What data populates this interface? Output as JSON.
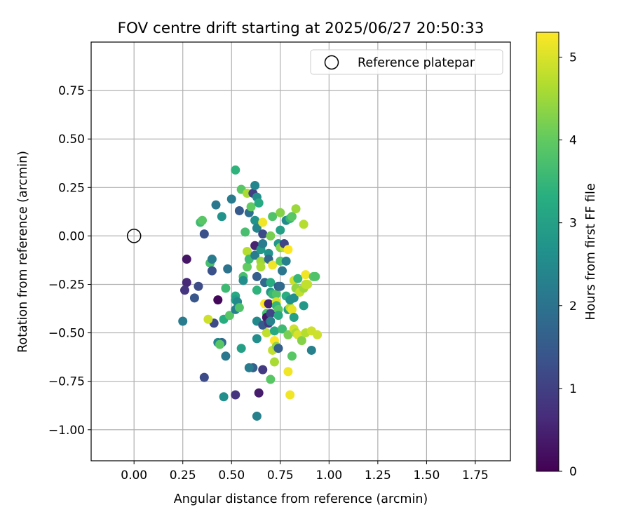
{
  "chart_data": {
    "type": "scatter",
    "title": "FOV centre drift starting at 2025/06/27 20:50:33",
    "xlabel": "Angular distance from reference (arcmin)",
    "ylabel": "Rotation from reference (arcmin)",
    "xlim": [
      -0.22,
      1.93
    ],
    "ylim": [
      -1.16,
      1.0
    ],
    "xticks": [
      "0.00",
      "0.25",
      "0.50",
      "0.75",
      "1.00",
      "1.25",
      "1.50",
      "1.75"
    ],
    "yticks": [
      "0.75",
      "0.50",
      "0.25",
      "0.00",
      "−0.25",
      "−0.50",
      "−0.75",
      "−1.00"
    ],
    "grid": true,
    "legend": {
      "position": "top-right",
      "entries": [
        "Reference platepar"
      ]
    },
    "colorbar": {
      "label": "Hours from first FF file",
      "range": [
        0,
        5.3
      ],
      "ticks": [
        "0",
        "1",
        "2",
        "3",
        "4",
        "5"
      ],
      "colormap": "viridis"
    },
    "reference": {
      "x": 0.0,
      "y": 0.0
    },
    "points": [
      [
        0.27,
        -0.12,
        0.3
      ],
      [
        0.27,
        -0.24,
        0.6
      ],
      [
        0.26,
        -0.28,
        0.8
      ],
      [
        0.31,
        -0.32,
        1.4
      ],
      [
        0.33,
        -0.26,
        1.2
      ],
      [
        0.25,
        -0.44,
        2.2
      ],
      [
        0.36,
        -0.73,
        1.2
      ],
      [
        0.34,
        0.07,
        3.6
      ],
      [
        0.35,
        0.08,
        3.9
      ],
      [
        0.36,
        0.01,
        1.3
      ],
      [
        0.39,
        -0.14,
        3.7
      ],
      [
        0.4,
        -0.12,
        2.2
      ],
      [
        0.4,
        -0.18,
        1.3
      ],
      [
        0.41,
        -0.45,
        1.2
      ],
      [
        0.42,
        0.16,
        2.1
      ],
      [
        0.43,
        -0.33,
        0.1
      ],
      [
        0.38,
        -0.43,
        4.9
      ],
      [
        0.43,
        -0.55,
        2.4
      ],
      [
        0.45,
        0.1,
        2.7
      ],
      [
        0.45,
        -0.55,
        1.8
      ],
      [
        0.44,
        -0.56,
        3.9
      ],
      [
        0.46,
        -0.83,
        2.6
      ],
      [
        0.46,
        -0.43,
        3.3
      ],
      [
        0.47,
        -0.27,
        3.6
      ],
      [
        0.48,
        -0.17,
        2.0
      ],
      [
        0.47,
        -0.62,
        2.1
      ],
      [
        0.5,
        0.19,
        2.2
      ],
      [
        0.49,
        -0.41,
        3.9
      ],
      [
        0.52,
        0.34,
        3.4
      ],
      [
        0.52,
        -0.31,
        3.2
      ],
      [
        0.52,
        -0.33,
        2.9
      ],
      [
        0.53,
        -0.34,
        2.5
      ],
      [
        0.52,
        -0.38,
        2.3
      ],
      [
        0.54,
        -0.37,
        3.8
      ],
      [
        0.52,
        -0.82,
        0.8
      ],
      [
        0.54,
        0.13,
        1.5
      ],
      [
        0.55,
        0.24,
        3.9
      ],
      [
        0.56,
        -0.21,
        3.7
      ],
      [
        0.56,
        -0.23,
        2.6
      ],
      [
        0.57,
        0.02,
        3.7
      ],
      [
        0.58,
        0.22,
        4.6
      ],
      [
        0.58,
        -0.08,
        4.7
      ],
      [
        0.58,
        -0.16,
        4.0
      ],
      [
        0.59,
        -0.12,
        3.6
      ],
      [
        0.59,
        0.12,
        1.9
      ],
      [
        0.6,
        0.15,
        4.0
      ],
      [
        0.61,
        0.22,
        1.0
      ],
      [
        0.62,
        -0.05,
        0.5
      ],
      [
        0.61,
        -0.68,
        1.6
      ],
      [
        0.59,
        -0.68,
        2.2
      ],
      [
        0.55,
        -0.58,
        3.0
      ],
      [
        0.62,
        0.26,
        2.4
      ],
      [
        0.62,
        0.08,
        2.7
      ],
      [
        0.63,
        0.04,
        2.4
      ],
      [
        0.63,
        0.2,
        2.6
      ],
      [
        0.64,
        0.17,
        3.2
      ],
      [
        0.62,
        -0.1,
        2.2
      ],
      [
        0.63,
        -0.21,
        1.6
      ],
      [
        0.63,
        -0.28,
        3.4
      ],
      [
        0.63,
        -0.44,
        2.5
      ],
      [
        0.63,
        -0.53,
        2.6
      ],
      [
        0.63,
        -0.93,
        2.3
      ],
      [
        0.64,
        -0.81,
        0.4
      ],
      [
        0.65,
        -0.07,
        2.8
      ],
      [
        0.65,
        -0.13,
        4.5
      ],
      [
        0.65,
        -0.16,
        4.6
      ],
      [
        0.66,
        0.07,
        5.2
      ],
      [
        0.66,
        0.01,
        1.2
      ],
      [
        0.66,
        -0.04,
        2.2
      ],
      [
        0.67,
        -0.35,
        5.3
      ],
      [
        0.66,
        -0.46,
        1.5
      ],
      [
        0.66,
        -0.69,
        0.9
      ],
      [
        0.67,
        -0.24,
        1.8
      ],
      [
        0.68,
        -0.4,
        3.7
      ],
      [
        0.68,
        -0.42,
        0.3
      ],
      [
        0.68,
        -0.5,
        4.8
      ],
      [
        0.69,
        -0.35,
        0.5
      ],
      [
        0.69,
        -0.45,
        0.9
      ],
      [
        0.69,
        -0.09,
        2.7
      ],
      [
        0.69,
        -0.12,
        1.8
      ],
      [
        0.7,
        0.0,
        4.2
      ],
      [
        0.7,
        -0.29,
        2.8
      ],
      [
        0.7,
        -0.24,
        3.3
      ],
      [
        0.7,
        -0.4,
        1.1
      ],
      [
        0.7,
        -0.44,
        2.3
      ],
      [
        0.7,
        -0.74,
        3.9
      ],
      [
        0.71,
        0.1,
        3.8
      ],
      [
        0.71,
        -0.15,
        5.2
      ],
      [
        0.71,
        -0.3,
        3.5
      ],
      [
        0.72,
        -0.49,
        3.2
      ],
      [
        0.71,
        -0.59,
        4.8
      ],
      [
        0.72,
        -0.54,
        5.3
      ],
      [
        0.72,
        -0.65,
        4.6
      ],
      [
        0.73,
        -0.57,
        4.4
      ],
      [
        0.73,
        -0.3,
        3.8
      ],
      [
        0.73,
        -0.34,
        5.0
      ],
      [
        0.73,
        -0.36,
        3.5
      ],
      [
        0.74,
        -0.04,
        2.8
      ],
      [
        0.74,
        -0.26,
        1.6
      ],
      [
        0.74,
        -0.38,
        3.9
      ],
      [
        0.74,
        -0.41,
        3.2
      ],
      [
        0.74,
        -0.58,
        1.6
      ],
      [
        0.75,
        -0.06,
        4.3
      ],
      [
        0.75,
        -0.13,
        3.9
      ],
      [
        0.75,
        -0.26,
        1.8
      ],
      [
        0.75,
        0.03,
        3.0
      ],
      [
        0.75,
        0.12,
        4.3
      ],
      [
        0.76,
        -0.48,
        3.6
      ],
      [
        0.76,
        -0.18,
        2.1
      ],
      [
        0.77,
        -0.06,
        4.8
      ],
      [
        0.77,
        -0.04,
        1.1
      ],
      [
        0.78,
        0.08,
        2.5
      ],
      [
        0.78,
        -0.13,
        2.3
      ],
      [
        0.78,
        -0.31,
        3.3
      ],
      [
        0.79,
        -0.51,
        4.2
      ],
      [
        0.79,
        -0.38,
        3.0
      ],
      [
        0.79,
        -0.07,
        5.3
      ],
      [
        0.79,
        -0.7,
        5.2
      ],
      [
        0.8,
        -0.82,
        5.2
      ],
      [
        0.8,
        0.09,
        3.5
      ],
      [
        0.81,
        0.1,
        3.9
      ],
      [
        0.8,
        -0.37,
        4.7
      ],
      [
        0.8,
        -0.33,
        2.7
      ],
      [
        0.81,
        -0.38,
        5.1
      ],
      [
        0.81,
        -0.62,
        3.9
      ],
      [
        0.82,
        -0.23,
        4.9
      ],
      [
        0.82,
        -0.32,
        2.6
      ],
      [
        0.82,
        -0.42,
        3.0
      ],
      [
        0.82,
        -0.48,
        4.9
      ],
      [
        0.83,
        -0.5,
        4.6
      ],
      [
        0.83,
        0.14,
        4.5
      ],
      [
        0.83,
        -0.27,
        4.4
      ],
      [
        0.84,
        -0.22,
        3.5
      ],
      [
        0.84,
        -0.51,
        5.0
      ],
      [
        0.85,
        -0.29,
        4.8
      ],
      [
        0.86,
        -0.54,
        4.3
      ],
      [
        0.87,
        -0.27,
        4.5
      ],
      [
        0.87,
        0.06,
        4.7
      ],
      [
        0.87,
        -0.36,
        2.8
      ],
      [
        0.88,
        -0.2,
        5.2
      ],
      [
        0.88,
        -0.25,
        4.8
      ],
      [
        0.88,
        -0.5,
        4.7
      ],
      [
        0.89,
        -0.25,
        4.8
      ],
      [
        0.91,
        -0.49,
        4.9
      ],
      [
        0.91,
        -0.59,
        2.3
      ],
      [
        0.92,
        -0.21,
        3.9
      ],
      [
        0.93,
        -0.21,
        3.8
      ],
      [
        0.94,
        -0.51,
        4.9
      ]
    ]
  }
}
